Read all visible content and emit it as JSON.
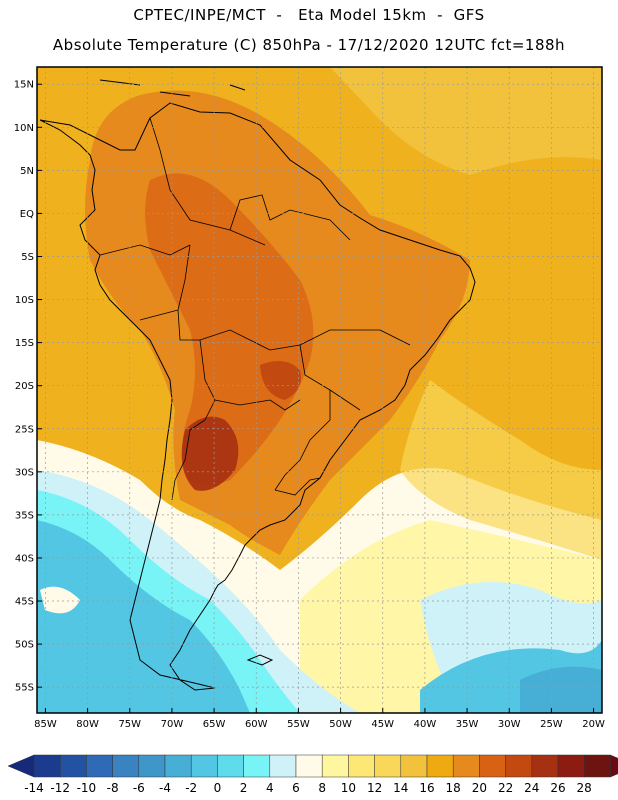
{
  "header": {
    "line1": "CPTEC/INPE/MCT  -   Eta Model 15km  -  GFS",
    "line2": "Absolute Temperature (C) 850hPa - 17/12/2020 12UTC fct=188h"
  },
  "map": {
    "lon_range": [
      -86,
      -19
    ],
    "lat_range": [
      -58,
      17
    ],
    "lat_ticks": [
      {
        "value": 15,
        "label": "15N"
      },
      {
        "value": 10,
        "label": "10N"
      },
      {
        "value": 5,
        "label": "5N"
      },
      {
        "value": 0,
        "label": "EQ"
      },
      {
        "value": -5,
        "label": "5S"
      },
      {
        "value": -10,
        "label": "10S"
      },
      {
        "value": -15,
        "label": "15S"
      },
      {
        "value": -20,
        "label": "20S"
      },
      {
        "value": -25,
        "label": "25S"
      },
      {
        "value": -30,
        "label": "30S"
      },
      {
        "value": -35,
        "label": "35S"
      },
      {
        "value": -40,
        "label": "40S"
      },
      {
        "value": -45,
        "label": "45S"
      },
      {
        "value": -50,
        "label": "50S"
      },
      {
        "value": -55,
        "label": "55S"
      }
    ],
    "lon_ticks": [
      {
        "value": -85,
        "label": "85W"
      },
      {
        "value": -80,
        "label": "80W"
      },
      {
        "value": -75,
        "label": "75W"
      },
      {
        "value": -70,
        "label": "70W"
      },
      {
        "value": -65,
        "label": "65W"
      },
      {
        "value": -60,
        "label": "60W"
      },
      {
        "value": -55,
        "label": "55W"
      },
      {
        "value": -50,
        "label": "50W"
      },
      {
        "value": -45,
        "label": "45W"
      },
      {
        "value": -40,
        "label": "40W"
      },
      {
        "value": -35,
        "label": "35W"
      },
      {
        "value": -30,
        "label": "30W"
      },
      {
        "value": -25,
        "label": "25W"
      },
      {
        "value": -20,
        "label": "20W"
      }
    ]
  },
  "colorbar": {
    "labels": [
      "-14",
      "-12",
      "-10",
      "-8",
      "-6",
      "-4",
      "-2",
      "0",
      "2",
      "4",
      "6",
      "8",
      "10",
      "12",
      "14",
      "16",
      "18",
      "20",
      "22",
      "24",
      "26",
      "28"
    ],
    "under_color": "#16297a",
    "over_color": "#6a0a14",
    "colors": [
      "#1b3c8e",
      "#2452a2",
      "#2e6ab5",
      "#3983c0",
      "#3e97c8",
      "#47afd6",
      "#52c6e2",
      "#5fdcec",
      "#78f4f7",
      "#cff1f8",
      "#fffbe8",
      "#fff6a0",
      "#fde876",
      "#f9d758",
      "#f3c23c",
      "#eeaa10",
      "#e68a1e",
      "#d86214",
      "#c24a10",
      "#a63012",
      "#8c1c12",
      "#6e1410"
    ]
  }
}
